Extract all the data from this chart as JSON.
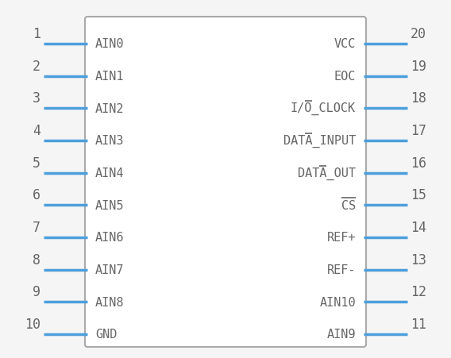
{
  "background_color": "#f5f5f5",
  "chip_color": "#ffffff",
  "chip_edge_color": "#aaaaaa",
  "pin_color": "#4d9fdc",
  "text_color": "#666666",
  "num_color": "#666666",
  "left_pins": [
    {
      "num": 1,
      "label": "AIN0"
    },
    {
      "num": 2,
      "label": "AIN1"
    },
    {
      "num": 3,
      "label": "AIN2"
    },
    {
      "num": 4,
      "label": "AIN3"
    },
    {
      "num": 5,
      "label": "AIN4"
    },
    {
      "num": 6,
      "label": "AIN5"
    },
    {
      "num": 7,
      "label": "AIN6"
    },
    {
      "num": 8,
      "label": "AIN7"
    },
    {
      "num": 9,
      "label": "AIN8"
    },
    {
      "num": 10,
      "label": "GND"
    }
  ],
  "right_pins": [
    {
      "num": 20,
      "label": "VCC"
    },
    {
      "num": 19,
      "label": "EOC"
    },
    {
      "num": 18,
      "label": "I/O_CLOCK"
    },
    {
      "num": 17,
      "label": "DATA_INPUT"
    },
    {
      "num": 16,
      "label": "DATA_OUT"
    },
    {
      "num": 15,
      "label": "CS"
    },
    {
      "num": 14,
      "label": "REF+"
    },
    {
      "num": 13,
      "label": "REF-"
    },
    {
      "num": 12,
      "label": "AIN10"
    },
    {
      "num": 11,
      "label": "AIN9"
    }
  ],
  "fig_width": 5.68,
  "fig_height": 4.52,
  "dpi": 100
}
